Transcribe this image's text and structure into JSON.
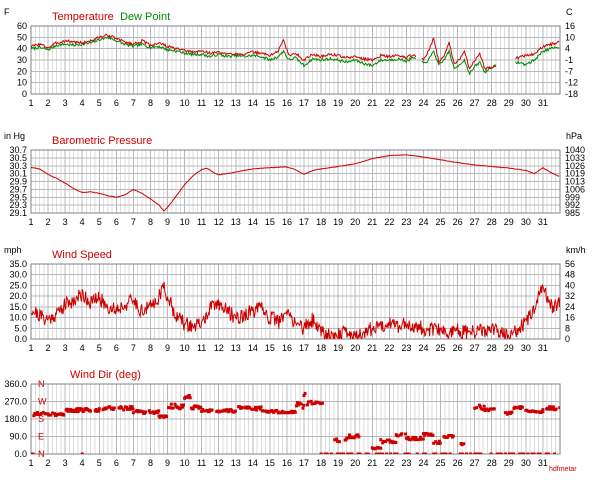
{
  "chart_data": [
    {
      "type": "line",
      "id": "temperature",
      "left_unit": "F",
      "right_unit": "C",
      "series": [
        {
          "name": "Temperature",
          "color": "#cc0000"
        },
        {
          "name": "Dew Point",
          "color": "#008800"
        }
      ],
      "x_ticks": [
        "1",
        "2",
        "3",
        "4",
        "5",
        "6",
        "7",
        "8",
        "9",
        "10",
        "11",
        "12",
        "13",
        "14",
        "15",
        "16",
        "17",
        "18",
        "19",
        "20",
        "21",
        "22",
        "23",
        "24",
        "25",
        "26",
        "27",
        "28",
        "29",
        "30",
        "31"
      ],
      "left_ticks": [
        "60",
        "50",
        "40",
        "30",
        "20",
        "10",
        "0"
      ],
      "right_ticks": [
        "16",
        "10",
        "4",
        "-1",
        "-7",
        "-12",
        "-18"
      ],
      "ylim": [
        0,
        60
      ],
      "x_range": [
        1,
        32
      ],
      "gaps": [
        [
          23.6,
          23.9
        ],
        [
          28.3,
          29.4
        ]
      ],
      "temp_points": [
        [
          1,
          42
        ],
        [
          1.5,
          44
        ],
        [
          2,
          41
        ],
        [
          2.5,
          45
        ],
        [
          3,
          47
        ],
        [
          3.5,
          46
        ],
        [
          4,
          45
        ],
        [
          4.5,
          47
        ],
        [
          5,
          50
        ],
        [
          5.5,
          52
        ],
        [
          6,
          49
        ],
        [
          6.5,
          46
        ],
        [
          7,
          44
        ],
        [
          7.5,
          47
        ],
        [
          8,
          43
        ],
        [
          8.5,
          45
        ],
        [
          9,
          42
        ],
        [
          9.5,
          40
        ],
        [
          10,
          38
        ],
        [
          10.5,
          37
        ],
        [
          11,
          38
        ],
        [
          11.5,
          36
        ],
        [
          12,
          37
        ],
        [
          12.5,
          35
        ],
        [
          13,
          36
        ],
        [
          13.5,
          35
        ],
        [
          14,
          37
        ],
        [
          14.5,
          36
        ],
        [
          15,
          34
        ],
        [
          15.5,
          38
        ],
        [
          15.8,
          48
        ],
        [
          16.1,
          34
        ],
        [
          16.5,
          36
        ],
        [
          17,
          30
        ],
        [
          17.5,
          35
        ],
        [
          18,
          33
        ],
        [
          18.5,
          35
        ],
        [
          19,
          34
        ],
        [
          19.5,
          32
        ],
        [
          20,
          33
        ],
        [
          20.5,
          31
        ],
        [
          21,
          30
        ],
        [
          21.5,
          34
        ],
        [
          22,
          33
        ],
        [
          22.5,
          34
        ],
        [
          23,
          32
        ],
        [
          23.4,
          35
        ],
        [
          24,
          30
        ],
        [
          24.3,
          38
        ],
        [
          24.6,
          50
        ],
        [
          24.9,
          28
        ],
        [
          25.2,
          34
        ],
        [
          25.5,
          45
        ],
        [
          25.8,
          26
        ],
        [
          26.1,
          30
        ],
        [
          26.4,
          38
        ],
        [
          26.7,
          22
        ],
        [
          27,
          30
        ],
        [
          27.3,
          36
        ],
        [
          27.6,
          22
        ],
        [
          28,
          24
        ],
        [
          29.5,
          32
        ],
        [
          30,
          34
        ],
        [
          30.5,
          35
        ],
        [
          31,
          42
        ],
        [
          31.5,
          44
        ],
        [
          32,
          46
        ]
      ],
      "dew_points": [
        [
          1,
          40
        ],
        [
          1.5,
          41
        ],
        [
          2,
          39
        ],
        [
          2.5,
          43
        ],
        [
          3,
          44
        ],
        [
          3.5,
          43
        ],
        [
          4,
          44
        ],
        [
          4.5,
          45
        ],
        [
          5,
          48
        ],
        [
          5.5,
          50
        ],
        [
          6,
          47
        ],
        [
          6.5,
          44
        ],
        [
          7,
          42
        ],
        [
          7.5,
          44
        ],
        [
          8,
          41
        ],
        [
          8.5,
          42
        ],
        [
          9,
          39
        ],
        [
          9.5,
          38
        ],
        [
          10,
          36
        ],
        [
          10.5,
          35
        ],
        [
          11,
          35
        ],
        [
          11.5,
          33
        ],
        [
          12,
          35
        ],
        [
          12.5,
          33
        ],
        [
          13,
          34
        ],
        [
          13.5,
          33
        ],
        [
          14,
          34
        ],
        [
          14.5,
          33
        ],
        [
          15,
          30
        ],
        [
          15.5,
          33
        ],
        [
          15.8,
          38
        ],
        [
          16.1,
          30
        ],
        [
          16.5,
          32
        ],
        [
          17,
          25
        ],
        [
          17.5,
          31
        ],
        [
          18,
          30
        ],
        [
          18.5,
          31
        ],
        [
          19,
          30
        ],
        [
          19.5,
          28
        ],
        [
          20,
          30
        ],
        [
          20.5,
          27
        ],
        [
          21,
          25
        ],
        [
          21.5,
          30
        ],
        [
          22,
          30
        ],
        [
          22.5,
          31
        ],
        [
          23,
          29
        ],
        [
          23.4,
          32
        ],
        [
          24,
          27
        ],
        [
          24.3,
          30
        ],
        [
          24.6,
          38
        ],
        [
          24.9,
          25
        ],
        [
          25.2,
          30
        ],
        [
          25.5,
          38
        ],
        [
          25.8,
          22
        ],
        [
          26.1,
          26
        ],
        [
          26.4,
          30
        ],
        [
          26.7,
          18
        ],
        [
          27,
          24
        ],
        [
          27.3,
          28
        ],
        [
          27.6,
          19
        ],
        [
          28,
          24
        ],
        [
          29.5,
          28
        ],
        [
          30,
          26
        ],
        [
          30.5,
          30
        ],
        [
          31,
          38
        ],
        [
          31.5,
          40
        ],
        [
          32,
          42
        ]
      ]
    },
    {
      "type": "line",
      "id": "pressure",
      "title": "Barometric Pressure",
      "left_unit": "in Hg",
      "right_unit": "hPa",
      "color": "#cc0000",
      "x_ticks": [
        "1",
        "2",
        "3",
        "4",
        "5",
        "6",
        "7",
        "8",
        "9",
        "10",
        "11",
        "12",
        "13",
        "14",
        "15",
        "16",
        "17",
        "18",
        "19",
        "20",
        "21",
        "22",
        "23",
        "24",
        "25",
        "26",
        "27",
        "28",
        "29",
        "30",
        "31"
      ],
      "left_ticks": [
        "30.7",
        "30.5",
        "30.3",
        "30.1",
        "29.9",
        "29.7",
        "29.5",
        "29.3",
        "29.1"
      ],
      "right_ticks": [
        "1040",
        "1033",
        "1026",
        "1019",
        "1013",
        "1006",
        "999",
        "992",
        "985"
      ],
      "ylim": [
        29.1,
        30.7
      ],
      "x_range": [
        1,
        32
      ],
      "points": [
        [
          1,
          30.26
        ],
        [
          1.5,
          30.22
        ],
        [
          2,
          30.08
        ],
        [
          2.5,
          29.98
        ],
        [
          3,
          29.86
        ],
        [
          3.5,
          29.72
        ],
        [
          4,
          29.62
        ],
        [
          4.5,
          29.64
        ],
        [
          5,
          29.6
        ],
        [
          5.5,
          29.54
        ],
        [
          6,
          29.5
        ],
        [
          6.5,
          29.56
        ],
        [
          7,
          29.7
        ],
        [
          7.5,
          29.6
        ],
        [
          8,
          29.46
        ],
        [
          8.5,
          29.3
        ],
        [
          8.8,
          29.15
        ],
        [
          9.2,
          29.35
        ],
        [
          10,
          29.82
        ],
        [
          10.5,
          30.05
        ],
        [
          11,
          30.2
        ],
        [
          11.3,
          30.24
        ],
        [
          11.8,
          30.1
        ],
        [
          12,
          30.07
        ],
        [
          12.5,
          30.1
        ],
        [
          13,
          30.14
        ],
        [
          14,
          30.22
        ],
        [
          15,
          30.25
        ],
        [
          16,
          30.27
        ],
        [
          16.5,
          30.2
        ],
        [
          17,
          30.08
        ],
        [
          17.5,
          30.18
        ],
        [
          18,
          30.22
        ],
        [
          19,
          30.28
        ],
        [
          20,
          30.35
        ],
        [
          21,
          30.48
        ],
        [
          22,
          30.56
        ],
        [
          23,
          30.58
        ],
        [
          24,
          30.52
        ],
        [
          25,
          30.45
        ],
        [
          26,
          30.38
        ],
        [
          27,
          30.32
        ],
        [
          28,
          30.28
        ],
        [
          29,
          30.24
        ],
        [
          30,
          30.18
        ],
        [
          30.5,
          30.1
        ],
        [
          31,
          30.25
        ],
        [
          31.5,
          30.12
        ],
        [
          32,
          30.02
        ]
      ]
    },
    {
      "type": "line",
      "id": "wind-speed",
      "title": "Wind Speed",
      "left_unit": "mph",
      "right_unit": "km/h",
      "color": "#cc0000",
      "x_ticks": [
        "1",
        "2",
        "3",
        "4",
        "5",
        "6",
        "7",
        "8",
        "9",
        "10",
        "11",
        "12",
        "13",
        "14",
        "15",
        "16",
        "17",
        "18",
        "19",
        "20",
        "21",
        "22",
        "23",
        "24",
        "25",
        "26",
        "27",
        "28",
        "29",
        "30",
        "31"
      ],
      "left_ticks": [
        "35.0",
        "30.0",
        "25.0",
        "20.0",
        "15.0",
        "10.0",
        "5.0",
        "0.0"
      ],
      "right_ticks": [
        "56",
        "48",
        "40",
        "32",
        "24",
        "16",
        "8",
        "0"
      ],
      "ylim": [
        0,
        35
      ],
      "x_range": [
        1,
        32
      ],
      "noise": 3.5,
      "points": [
        [
          1,
          14
        ],
        [
          1.5,
          11
        ],
        [
          2,
          9
        ],
        [
          2.5,
          12
        ],
        [
          3,
          16
        ],
        [
          3.5,
          18
        ],
        [
          4,
          21
        ],
        [
          4.5,
          17
        ],
        [
          5,
          19
        ],
        [
          5.5,
          15
        ],
        [
          6,
          14
        ],
        [
          6.5,
          16
        ],
        [
          7,
          18
        ],
        [
          7.5,
          13
        ],
        [
          8,
          15
        ],
        [
          8.5,
          20
        ],
        [
          8.8,
          24
        ],
        [
          9.2,
          16
        ],
        [
          9.6,
          10
        ],
        [
          10,
          7
        ],
        [
          10.5,
          6
        ],
        [
          11,
          7
        ],
        [
          11.5,
          14
        ],
        [
          12,
          17
        ],
        [
          12.5,
          13
        ],
        [
          13,
          10
        ],
        [
          13.5,
          11
        ],
        [
          14,
          13
        ],
        [
          14.5,
          14
        ],
        [
          15,
          10
        ],
        [
          15.5,
          8
        ],
        [
          16,
          12
        ],
        [
          16.5,
          8
        ],
        [
          17,
          5
        ],
        [
          17.5,
          9
        ],
        [
          18,
          4
        ],
        [
          18.5,
          2
        ],
        [
          19,
          2
        ],
        [
          19.5,
          3
        ],
        [
          20,
          1
        ],
        [
          20.5,
          3
        ],
        [
          21,
          5
        ],
        [
          21.5,
          6
        ],
        [
          22,
          8
        ],
        [
          22.5,
          6
        ],
        [
          23,
          7
        ],
        [
          23.5,
          6
        ],
        [
          24,
          5
        ],
        [
          24.5,
          4
        ],
        [
          25,
          4
        ],
        [
          25.5,
          3
        ],
        [
          26,
          4
        ],
        [
          26.5,
          3
        ],
        [
          27,
          3
        ],
        [
          27.5,
          4
        ],
        [
          28,
          4
        ],
        [
          28.5,
          3
        ],
        [
          29,
          2
        ],
        [
          29.5,
          4
        ],
        [
          30,
          8
        ],
        [
          30.5,
          13
        ],
        [
          31,
          25
        ],
        [
          31.2,
          20
        ],
        [
          31.6,
          15
        ],
        [
          32,
          18
        ]
      ]
    },
    {
      "type": "scatter",
      "id": "wind-dir",
      "title": "Wind Dir (deg)",
      "color": "#cc0000",
      "x_ticks": [
        "1",
        "2",
        "3",
        "4",
        "5",
        "6",
        "7",
        "8",
        "9",
        "10",
        "11",
        "12",
        "13",
        "14",
        "15",
        "16",
        "17",
        "18",
        "19",
        "20",
        "21",
        "22",
        "23",
        "24",
        "25",
        "26",
        "27",
        "28",
        "29",
        "30",
        "31"
      ],
      "left_ticks": [
        "360.0",
        "270.0",
        "180.0",
        "90.0",
        "0.0"
      ],
      "direction_labels": [
        "N",
        "W",
        "S",
        "E",
        "N"
      ],
      "ylim": [
        0,
        360
      ],
      "x_range": [
        1,
        32
      ],
      "credit": "hdfmetar",
      "clusters": [
        [
          1,
          3,
          205,
          18
        ],
        [
          3,
          5,
          225,
          18
        ],
        [
          5,
          7,
          235,
          18
        ],
        [
          7,
          8.5,
          215,
          18
        ],
        [
          8.5,
          9,
          195,
          15
        ],
        [
          9,
          10,
          245,
          25
        ],
        [
          10,
          10.4,
          295,
          18
        ],
        [
          10.4,
          11,
          240,
          18
        ],
        [
          11,
          13,
          222,
          15
        ],
        [
          13,
          14.5,
          235,
          18
        ],
        [
          14.5,
          15.5,
          220,
          12
        ],
        [
          15.5,
          16.5,
          215,
          10
        ],
        [
          16.5,
          17,
          250,
          30
        ],
        [
          17,
          17.2,
          310,
          25
        ],
        [
          17.2,
          18.1,
          265,
          25
        ],
        [
          18.8,
          19.5,
          70,
          18
        ],
        [
          19.5,
          20.3,
          90,
          18
        ],
        [
          21,
          21.5,
          35,
          18
        ],
        [
          21.5,
          22.4,
          65,
          18
        ],
        [
          22.4,
          23,
          100,
          15
        ],
        [
          23,
          24,
          80,
          15
        ],
        [
          24,
          24.6,
          100,
          12
        ],
        [
          24.6,
          25,
          60,
          12
        ],
        [
          25.2,
          25.8,
          90,
          12
        ],
        [
          26.2,
          26.4,
          50,
          10
        ],
        [
          27,
          27.6,
          240,
          22
        ],
        [
          27.6,
          28.2,
          230,
          15
        ],
        [
          28.8,
          29.2,
          210,
          12
        ],
        [
          29.3,
          29.8,
          240,
          12
        ],
        [
          30,
          30.5,
          220,
          12
        ],
        [
          30.5,
          31,
          215,
          10
        ],
        [
          31,
          32,
          235,
          18
        ]
      ],
      "zero_ranges": [
        [
          1,
          1.3
        ],
        [
          4,
          4.2
        ],
        [
          18,
          32
        ]
      ]
    }
  ]
}
